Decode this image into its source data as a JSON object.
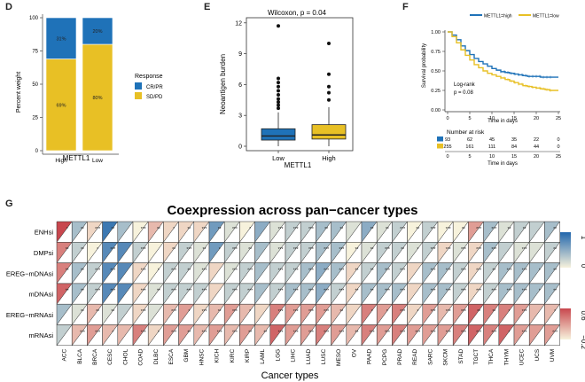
{
  "chart_data": [
    {
      "panel": "D",
      "type": "bar",
      "stacked": true,
      "xlabel": "METTL1",
      "ylabel": "Percent weight",
      "categories": [
        "High",
        "Low"
      ],
      "yticks": [
        "0",
        "25",
        "50",
        "75",
        "100"
      ],
      "ylim": [
        0,
        100
      ],
      "series": [
        {
          "name": "SD/PD",
          "values": [
            69,
            80
          ],
          "labels": [
            "69%",
            "80%"
          ],
          "color": "#e8c025"
        },
        {
          "name": "CR/PR",
          "values": [
            31,
            20
          ],
          "labels": [
            "31%",
            "20%"
          ],
          "color": "#1f72b8"
        }
      ],
      "legend": {
        "title": "Response",
        "items": [
          "CR/PR",
          "SD/PD"
        ],
        "position": "right"
      }
    },
    {
      "panel": "E",
      "type": "box",
      "annotation": "Wilcoxon, p = 0.04",
      "xlabel": "METTL1",
      "ylabel": "Neoantigen burden",
      "categories": [
        "Low",
        "High"
      ],
      "yticks": [
        "0",
        "3",
        "6",
        "9",
        "12"
      ],
      "ylim": [
        0,
        12.5
      ],
      "boxes": [
        {
          "name": "Low",
          "color": "#1f72b8",
          "whisker_low": 0,
          "q1": 0.6,
          "median": 1.0,
          "q3": 1.7,
          "whisker_high": 3.3,
          "outliers": [
            3.7,
            4.0,
            4.3,
            4.6,
            5.0,
            5.4,
            5.8,
            6.2,
            6.6,
            11.7
          ]
        },
        {
          "name": "High",
          "color": "#e8c025",
          "whisker_low": 0,
          "q1": 0.7,
          "median": 1.1,
          "q3": 2.1,
          "whisker_high": 3.8,
          "outliers": [
            4.5,
            5.2,
            5.8,
            7.0,
            10.0
          ]
        }
      ]
    },
    {
      "panel": "F",
      "type": "line",
      "subtype": "kaplan-meier",
      "xlabel": "Time in days",
      "ylabel": "Survival probability",
      "xticks": [
        "0",
        "5",
        "10",
        "15",
        "20",
        "25"
      ],
      "yticks": [
        "0.00",
        "0.25",
        "0.50",
        "0.75",
        "1.00"
      ],
      "xlim": [
        0,
        25
      ],
      "ylim": [
        0,
        1
      ],
      "annotation": [
        "Log-rank",
        "p = 0.08"
      ],
      "legend": [
        "METTL1=high",
        "METTL1=low"
      ],
      "series": [
        {
          "name": "METTL1=high",
          "color": "#1f72b8",
          "x": [
            0,
            1,
            2,
            3,
            4,
            5,
            6,
            7,
            8,
            9,
            10,
            11,
            12,
            13,
            14,
            15,
            16,
            17,
            18,
            19,
            20,
            21,
            22,
            23,
            24,
            25
          ],
          "y": [
            1.0,
            0.96,
            0.9,
            0.82,
            0.76,
            0.71,
            0.66,
            0.62,
            0.59,
            0.56,
            0.53,
            0.51,
            0.49,
            0.48,
            0.47,
            0.46,
            0.45,
            0.44,
            0.43,
            0.43,
            0.43,
            0.42,
            0.42,
            0.42,
            0.42,
            0.42
          ]
        },
        {
          "name": "METTL1=low",
          "color": "#e8c025",
          "x": [
            0,
            1,
            2,
            3,
            4,
            5,
            6,
            7,
            8,
            9,
            10,
            11,
            12,
            13,
            14,
            15,
            16,
            17,
            18,
            19,
            20,
            21,
            22,
            23,
            24,
            25
          ],
          "y": [
            1.0,
            0.94,
            0.86,
            0.77,
            0.7,
            0.64,
            0.58,
            0.54,
            0.5,
            0.47,
            0.45,
            0.43,
            0.41,
            0.39,
            0.37,
            0.35,
            0.33,
            0.31,
            0.3,
            0.29,
            0.28,
            0.27,
            0.26,
            0.25,
            0.25,
            0.25
          ]
        }
      ],
      "risk_table": {
        "title": "Number at risk",
        "xlabel": "Time in days",
        "rows": [
          {
            "name": "high",
            "color": "#1f72b8",
            "values": [
              "93",
              "62",
              "45",
              "35",
              "22",
              "0"
            ]
          },
          {
            "name": "low",
            "color": "#e8c025",
            "values": [
              "255",
              "161",
              "111",
              "84",
              "44",
              "0"
            ]
          }
        ]
      }
    },
    {
      "panel": "G",
      "type": "heatmap",
      "title": "Coexpression across pan−cancer types",
      "xlabel": "Cancer types",
      "rows": [
        "ENHsi",
        "DMPsi",
        "EREG−mDNAsi",
        "mDNAsi",
        "EREG−mRNAsi",
        "mRNAsi"
      ],
      "columns": [
        "ACC",
        "BLCA",
        "BRCA",
        "CESC",
        "CHOL",
        "COAD",
        "DLBC",
        "ESCA",
        "GBM",
        "HNSC",
        "KICH",
        "KIRC",
        "KIRP",
        "LAML",
        "LGG",
        "LIHC",
        "LUAD",
        "LUSC",
        "MESO",
        "OV",
        "PAAD",
        "PCPG",
        "PRAD",
        "READ",
        "SARC",
        "SKCM",
        "STAD",
        "TGCT",
        "THCA",
        "THYM",
        "UCEC",
        "UCS",
        "UVM"
      ],
      "scales": [
        {
          "ticks": [
            "1",
            "0"
          ],
          "low": "#f7f2dc",
          "high": "#2166ac"
        },
        {
          "ticks": [
            "0.6",
            "−0.2"
          ],
          "low": "#f7f2dc",
          "high": "#c8474e"
        }
      ],
      "values": [
        [
          0.6,
          -0.3,
          0.1,
          -0.7,
          -0.3,
          0.0,
          0.2,
          0.1,
          0.1,
          0.1,
          -0.5,
          -0.1,
          0.0,
          -0.4,
          -0.1,
          -0.2,
          -0.2,
          -0.3,
          -0.3,
          -0.1,
          -0.4,
          -0.1,
          -0.2,
          0.0,
          -0.2,
          0.0,
          0.0,
          0.3,
          -0.3,
          -0.1,
          -0.2,
          -0.2,
          -0.3
        ],
        [
          0.4,
          -0.2,
          0.0,
          -0.6,
          -0.6,
          -0.2,
          0.0,
          0.1,
          -0.2,
          -0.1,
          -0.5,
          -0.2,
          -0.1,
          -0.3,
          -0.1,
          -0.2,
          -0.2,
          -0.3,
          -0.3,
          0.0,
          -0.1,
          -0.2,
          -0.2,
          -0.1,
          -0.2,
          0.1,
          -0.1,
          0.1,
          -0.3,
          -0.2,
          -0.1,
          -0.1,
          -0.2
        ],
        [
          0.4,
          -0.3,
          -0.2,
          -0.6,
          -0.6,
          0.1,
          0.0,
          -0.2,
          -0.2,
          -0.1,
          0.1,
          -0.1,
          -0.2,
          -0.3,
          -0.2,
          -0.2,
          -0.3,
          -0.4,
          -0.3,
          0.1,
          -0.2,
          -0.3,
          -0.2,
          0.1,
          -0.3,
          -0.3,
          -0.2,
          0.1,
          -0.2,
          -0.3,
          -0.3,
          -0.3,
          -0.3
        ],
        [
          0.5,
          -0.3,
          -0.2,
          -0.6,
          -0.6,
          0.1,
          -0.1,
          -0.2,
          -0.2,
          -0.2,
          0.1,
          -0.2,
          -0.2,
          -0.3,
          -0.2,
          -0.3,
          -0.3,
          -0.4,
          -0.2,
          0.1,
          -0.3,
          -0.3,
          -0.3,
          0.1,
          -0.3,
          -0.3,
          -0.2,
          0.1,
          -0.2,
          -0.3,
          -0.3,
          -0.3,
          -0.3
        ],
        [
          -0.3,
          -0.1,
          0.2,
          -0.1,
          -0.2,
          0.1,
          -0.1,
          0.2,
          0.3,
          0.1,
          0.2,
          0.3,
          0.2,
          0.1,
          0.4,
          0.3,
          0.3,
          0.3,
          0.2,
          0.1,
          0.4,
          0.3,
          0.4,
          0.1,
          0.3,
          0.2,
          0.3,
          0.5,
          0.4,
          0.4,
          0.3,
          0.2,
          0.2
        ],
        [
          -0.2,
          0.2,
          0.3,
          0.2,
          0.2,
          0.4,
          0.1,
          0.3,
          0.3,
          0.2,
          0.3,
          0.2,
          0.3,
          0.2,
          0.5,
          0.3,
          0.3,
          0.4,
          0.3,
          0.2,
          0.4,
          0.3,
          0.4,
          0.3,
          0.3,
          0.3,
          0.4,
          0.5,
          0.4,
          0.5,
          0.3,
          0.3,
          0.3
        ]
      ],
      "significance": [
        [
          "*",
          "**",
          "***",
          "**",
          "",
          "***",
          "**",
          "*",
          "**",
          "***",
          "**",
          "***",
          "*",
          "",
          "***",
          "***",
          "***",
          "**",
          "**",
          "",
          "**",
          "**",
          "***",
          "**",
          "***",
          "***",
          "**",
          "***",
          "***",
          "**",
          "**",
          "",
          "**"
        ],
        [
          "**",
          "**",
          "*",
          "***",
          "",
          "***",
          "",
          "**",
          "***",
          "**",
          "*",
          "***",
          "**",
          "",
          "***",
          "***",
          "***",
          "***",
          "***",
          "**",
          "**",
          "***",
          "**",
          "*",
          "***",
          "***",
          "***",
          "***",
          "***",
          "",
          "***",
          "",
          "**"
        ],
        [
          "**",
          "**",
          "***",
          "***",
          "",
          "***",
          "*",
          "***",
          "**",
          "***",
          "",
          "***",
          "***",
          "",
          "***",
          "***",
          "***",
          "***",
          "***",
          "**",
          "**",
          "***",
          "***",
          "",
          "***",
          "***",
          "***",
          "***",
          "**",
          "***",
          "***",
          "*",
          "**"
        ],
        [
          "**",
          "**",
          "***",
          "***",
          "",
          "***",
          "**",
          "***",
          "***",
          "***",
          "",
          "***",
          "***",
          "",
          "***",
          "***",
          "***",
          "***",
          "***",
          "**",
          "**",
          "***",
          "***",
          "",
          "***",
          "***",
          "***",
          "***",
          "***",
          "***",
          "***",
          "*",
          "**"
        ],
        [
          "",
          "**",
          "**",
          "**",
          "",
          "***",
          "",
          "***",
          "*",
          "***",
          "**",
          "***",
          "*",
          "",
          "***",
          "***",
          "***",
          "***",
          "**",
          "",
          "*",
          "*",
          "***",
          "*",
          "***",
          "***",
          "***",
          "**",
          "**",
          "*",
          "***",
          "",
          "*"
        ],
        [
          "",
          "***",
          "***",
          "*",
          "",
          "***",
          "*",
          "***",
          "**",
          "***",
          "***",
          "***",
          "**",
          "**",
          "***",
          "***",
          "***",
          "***",
          "***",
          "**",
          "***",
          "***",
          "***",
          "***",
          "***",
          "***",
          "***",
          "***",
          "***",
          "*",
          "***",
          "",
          "***"
        ]
      ]
    }
  ]
}
